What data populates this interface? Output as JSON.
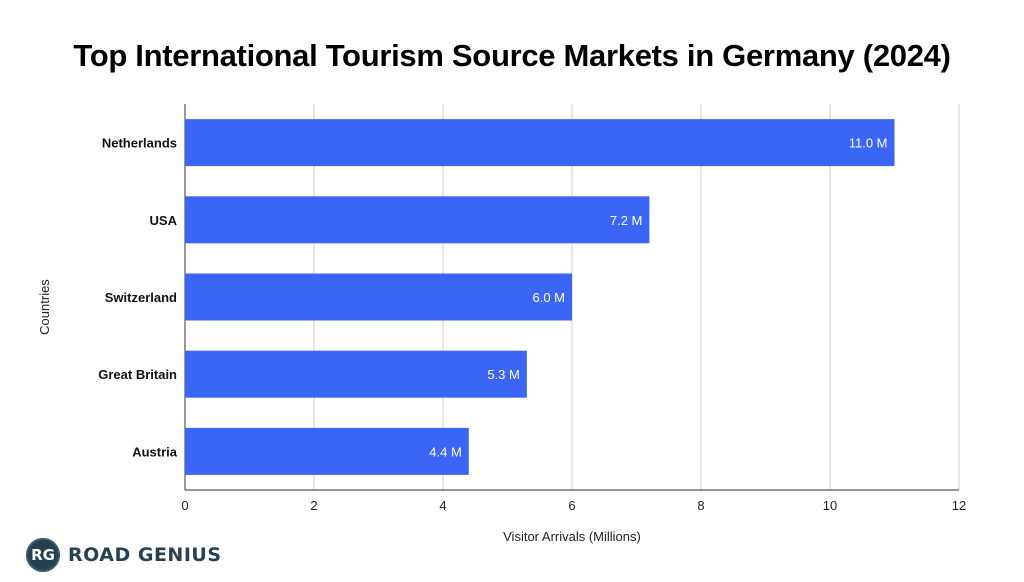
{
  "chart_data": {
    "type": "bar",
    "orientation": "horizontal",
    "title": "Top International Tourism Source Markets in Germany (2024)",
    "xlabel": "Visitor Arrivals (Millions)",
    "ylabel": "Countries",
    "categories": [
      "Netherlands",
      "USA",
      "Switzerland",
      "Great Britain",
      "Austria"
    ],
    "values": [
      11.0,
      7.2,
      6.0,
      5.3,
      4.4
    ],
    "data_labels": [
      "11.0 M",
      "7.2 M",
      "6.0 M",
      "5.3 M",
      "4.4 M"
    ],
    "xlim": [
      0,
      12
    ],
    "xticks": [
      0,
      2,
      4,
      6,
      8,
      10,
      12
    ],
    "grid": true,
    "bar_color": "#3b66f5"
  },
  "brand": {
    "badge": "RG",
    "name": "ROAD GENIUS",
    "color": "#25404f"
  }
}
